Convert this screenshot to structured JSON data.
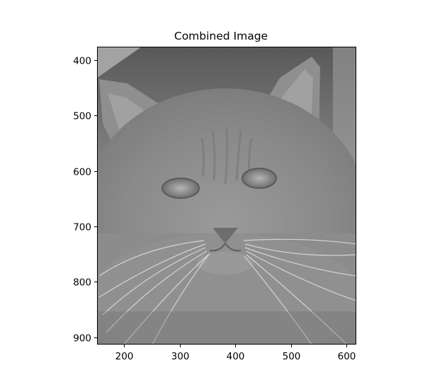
{
  "figure": {
    "title": "Combined Image"
  },
  "image": {
    "description": "grayscale hybrid image of a fluffy long-haired cat face",
    "extent_x": [
      150,
      615
    ],
    "extent_y_top": 375,
    "extent_y_bottom": 912
  },
  "axes": {
    "x_ticks": [
      200,
      300,
      400,
      500,
      600
    ],
    "y_ticks": [
      400,
      500,
      600,
      700,
      800,
      900
    ]
  },
  "colors": {
    "background": "#ffffff",
    "axis": "#000000",
    "image_mid_gray": "#8e8e8e"
  }
}
